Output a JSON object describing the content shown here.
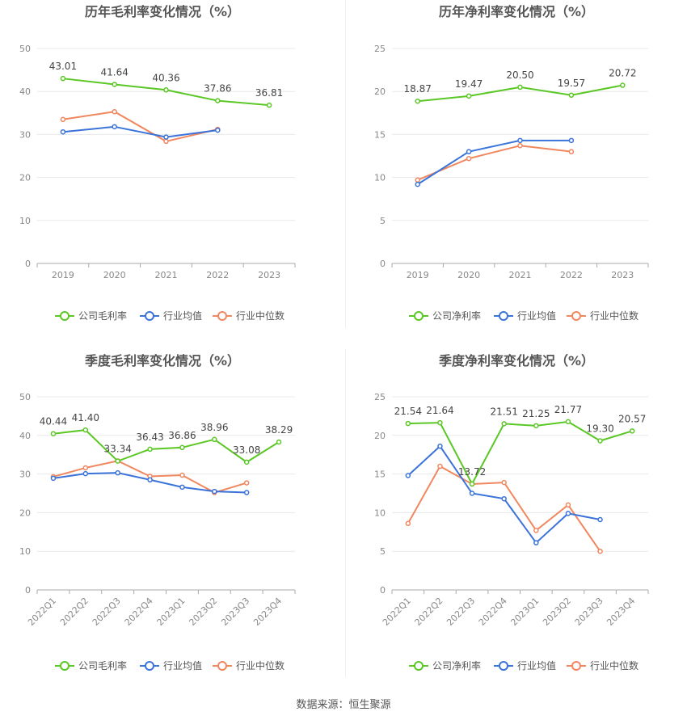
{
  "source_label": "数据来源：恒生聚源",
  "colors": {
    "company": "#5ac725",
    "avg": "#3a73d9",
    "median": "#f0875f",
    "grid": "#e8e8e8",
    "axis": "#aaaaaa",
    "text": "#888888",
    "title": "#555555"
  },
  "chart_data": [
    {
      "type": "line",
      "title": "历年毛利率变化情况（%）",
      "categories": [
        "2019",
        "2020",
        "2021",
        "2022",
        "2023"
      ],
      "ylim": [
        0,
        50
      ],
      "yticks": [
        0,
        10,
        20,
        30,
        40,
        50
      ],
      "grid": true,
      "legend_position": "bottom",
      "series": [
        {
          "name": "公司毛利率",
          "color_key": "company",
          "values": [
            43.01,
            41.64,
            40.36,
            37.86,
            36.81
          ],
          "labels": [
            "43.01",
            "41.64",
            "40.36",
            "37.86",
            "36.81"
          ]
        },
        {
          "name": "行业均值",
          "color_key": "avg",
          "values": [
            30.6,
            31.8,
            29.4,
            31.0,
            null
          ]
        },
        {
          "name": "行业中位数",
          "color_key": "median",
          "values": [
            33.5,
            35.3,
            28.4,
            31.2,
            null
          ]
        }
      ]
    },
    {
      "type": "line",
      "title": "历年净利率变化情况（%）",
      "categories": [
        "2019",
        "2020",
        "2021",
        "2022",
        "2023"
      ],
      "ylim": [
        0,
        25
      ],
      "yticks": [
        0,
        5,
        10,
        15,
        20,
        25
      ],
      "grid": true,
      "legend_position": "bottom",
      "series": [
        {
          "name": "公司净利率",
          "color_key": "company",
          "values": [
            18.87,
            19.47,
            20.5,
            19.57,
            20.72
          ],
          "labels": [
            "18.87",
            "19.47",
            "20.50",
            "19.57",
            "20.72"
          ]
        },
        {
          "name": "行业均值",
          "color_key": "avg",
          "values": [
            9.2,
            13.0,
            14.3,
            14.3,
            null
          ]
        },
        {
          "name": "行业中位数",
          "color_key": "median",
          "values": [
            9.7,
            12.2,
            13.7,
            13.0,
            null
          ]
        }
      ]
    },
    {
      "type": "line",
      "title": "季度毛利率变化情况（%）",
      "categories": [
        "2022Q1",
        "2022Q2",
        "2022Q3",
        "2022Q4",
        "2023Q1",
        "2023Q2",
        "2023Q3",
        "2023Q4"
      ],
      "rotate_xticks": true,
      "ylim": [
        0,
        50
      ],
      "yticks": [
        0,
        10,
        20,
        30,
        40,
        50
      ],
      "grid": true,
      "legend_position": "bottom",
      "series": [
        {
          "name": "公司毛利率",
          "color_key": "company",
          "values": [
            40.44,
            41.4,
            33.34,
            36.43,
            36.86,
            38.96,
            33.08,
            38.29
          ],
          "labels": [
            "40.44",
            "41.40",
            "33.34",
            "36.43",
            "36.86",
            "38.96",
            "33.08",
            "38.29"
          ]
        },
        {
          "name": "行业均值",
          "color_key": "avg",
          "values": [
            28.9,
            30.1,
            30.3,
            28.5,
            26.6,
            25.5,
            25.2,
            null
          ]
        },
        {
          "name": "行业中位数",
          "color_key": "median",
          "values": [
            29.3,
            31.6,
            33.4,
            29.4,
            29.7,
            25.2,
            27.7,
            null
          ]
        }
      ]
    },
    {
      "type": "line",
      "title": "季度净利率变化情况（%）",
      "categories": [
        "2022Q1",
        "2022Q2",
        "2022Q3",
        "2022Q4",
        "2023Q1",
        "2023Q2",
        "2023Q3",
        "2023Q4"
      ],
      "rotate_xticks": true,
      "ylim": [
        0,
        25
      ],
      "yticks": [
        0,
        5,
        10,
        15,
        20,
        25
      ],
      "grid": true,
      "legend_position": "bottom",
      "series": [
        {
          "name": "公司净利率",
          "color_key": "company",
          "values": [
            21.54,
            21.64,
            13.72,
            21.51,
            21.25,
            21.77,
            19.3,
            20.57
          ],
          "labels": [
            "21.54",
            "21.64",
            "13.72",
            "21.51",
            "21.25",
            "21.77",
            "19.30",
            "20.57"
          ]
        },
        {
          "name": "行业均值",
          "color_key": "avg",
          "values": [
            14.8,
            18.6,
            12.5,
            11.8,
            6.1,
            9.9,
            9.1,
            null
          ]
        },
        {
          "name": "行业中位数",
          "color_key": "median",
          "values": [
            8.6,
            16.0,
            13.7,
            13.9,
            7.7,
            11.0,
            5.0,
            null
          ]
        }
      ]
    }
  ]
}
